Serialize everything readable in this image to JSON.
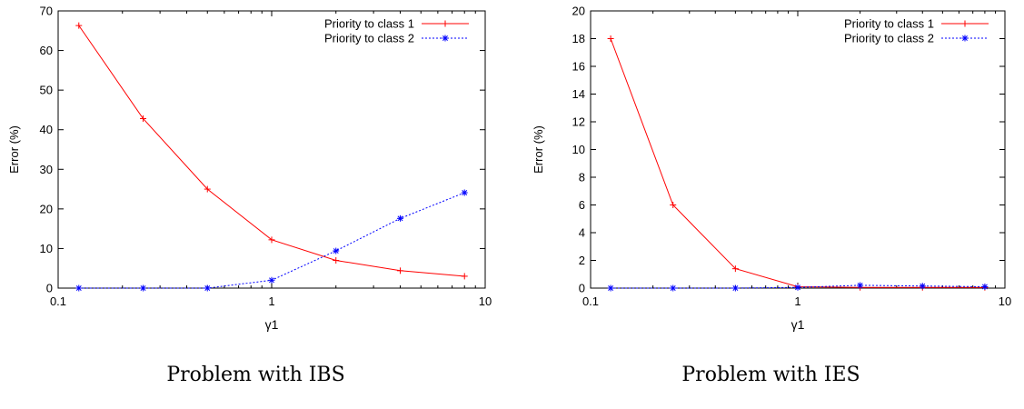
{
  "chart_data": [
    {
      "type": "line",
      "caption": "Problem with IBS",
      "xlabel": "γ1",
      "ylabel": "Error (%)",
      "xscale": "log",
      "xlim": [
        0.1,
        10
      ],
      "ylim": [
        0,
        70
      ],
      "xticks": [
        0.1,
        1,
        10
      ],
      "xtick_labels": [
        "0.1",
        "1",
        "10"
      ],
      "yticks": [
        0,
        10,
        20,
        30,
        40,
        50,
        60,
        70
      ],
      "grid": false,
      "legend_position": "top-right",
      "series": [
        {
          "name": "Priority to class 1",
          "color": "#ff0000",
          "line_style": "solid",
          "marker": "plus",
          "x": [
            0.125,
            0.25,
            0.5,
            1,
            2,
            4,
            8
          ],
          "y": [
            66.3,
            42.8,
            25.0,
            12.2,
            7.0,
            4.4,
            3.0
          ]
        },
        {
          "name": "Priority to class 2",
          "color": "#0000ff",
          "line_style": "dotted",
          "marker": "star",
          "x": [
            0.125,
            0.25,
            0.5,
            1,
            2,
            4,
            8
          ],
          "y": [
            0,
            0,
            0,
            2.0,
            9.4,
            17.6,
            24.1
          ]
        }
      ]
    },
    {
      "type": "line",
      "caption": "Problem with IES",
      "xlabel": "γ1",
      "ylabel": "Error (%)",
      "xscale": "log",
      "xlim": [
        0.1,
        10
      ],
      "ylim": [
        0,
        20
      ],
      "xticks": [
        0.1,
        1,
        10
      ],
      "xtick_labels": [
        "0.1",
        "1",
        "10"
      ],
      "yticks": [
        0,
        2,
        4,
        6,
        8,
        10,
        12,
        14,
        16,
        18,
        20
      ],
      "grid": false,
      "legend_position": "top-right",
      "series": [
        {
          "name": "Priority to class 1",
          "color": "#ff0000",
          "line_style": "solid",
          "marker": "plus",
          "x": [
            0.125,
            0.25,
            0.5,
            1,
            2,
            4,
            8
          ],
          "y": [
            18.0,
            6.0,
            1.4,
            0.1,
            0.05,
            0.05,
            0.05
          ]
        },
        {
          "name": "Priority to class 2",
          "color": "#0000ff",
          "line_style": "dotted",
          "marker": "star",
          "x": [
            0.125,
            0.25,
            0.5,
            1,
            2,
            4,
            8
          ],
          "y": [
            0,
            0,
            0,
            0.05,
            0.2,
            0.15,
            0.1
          ]
        }
      ]
    }
  ]
}
